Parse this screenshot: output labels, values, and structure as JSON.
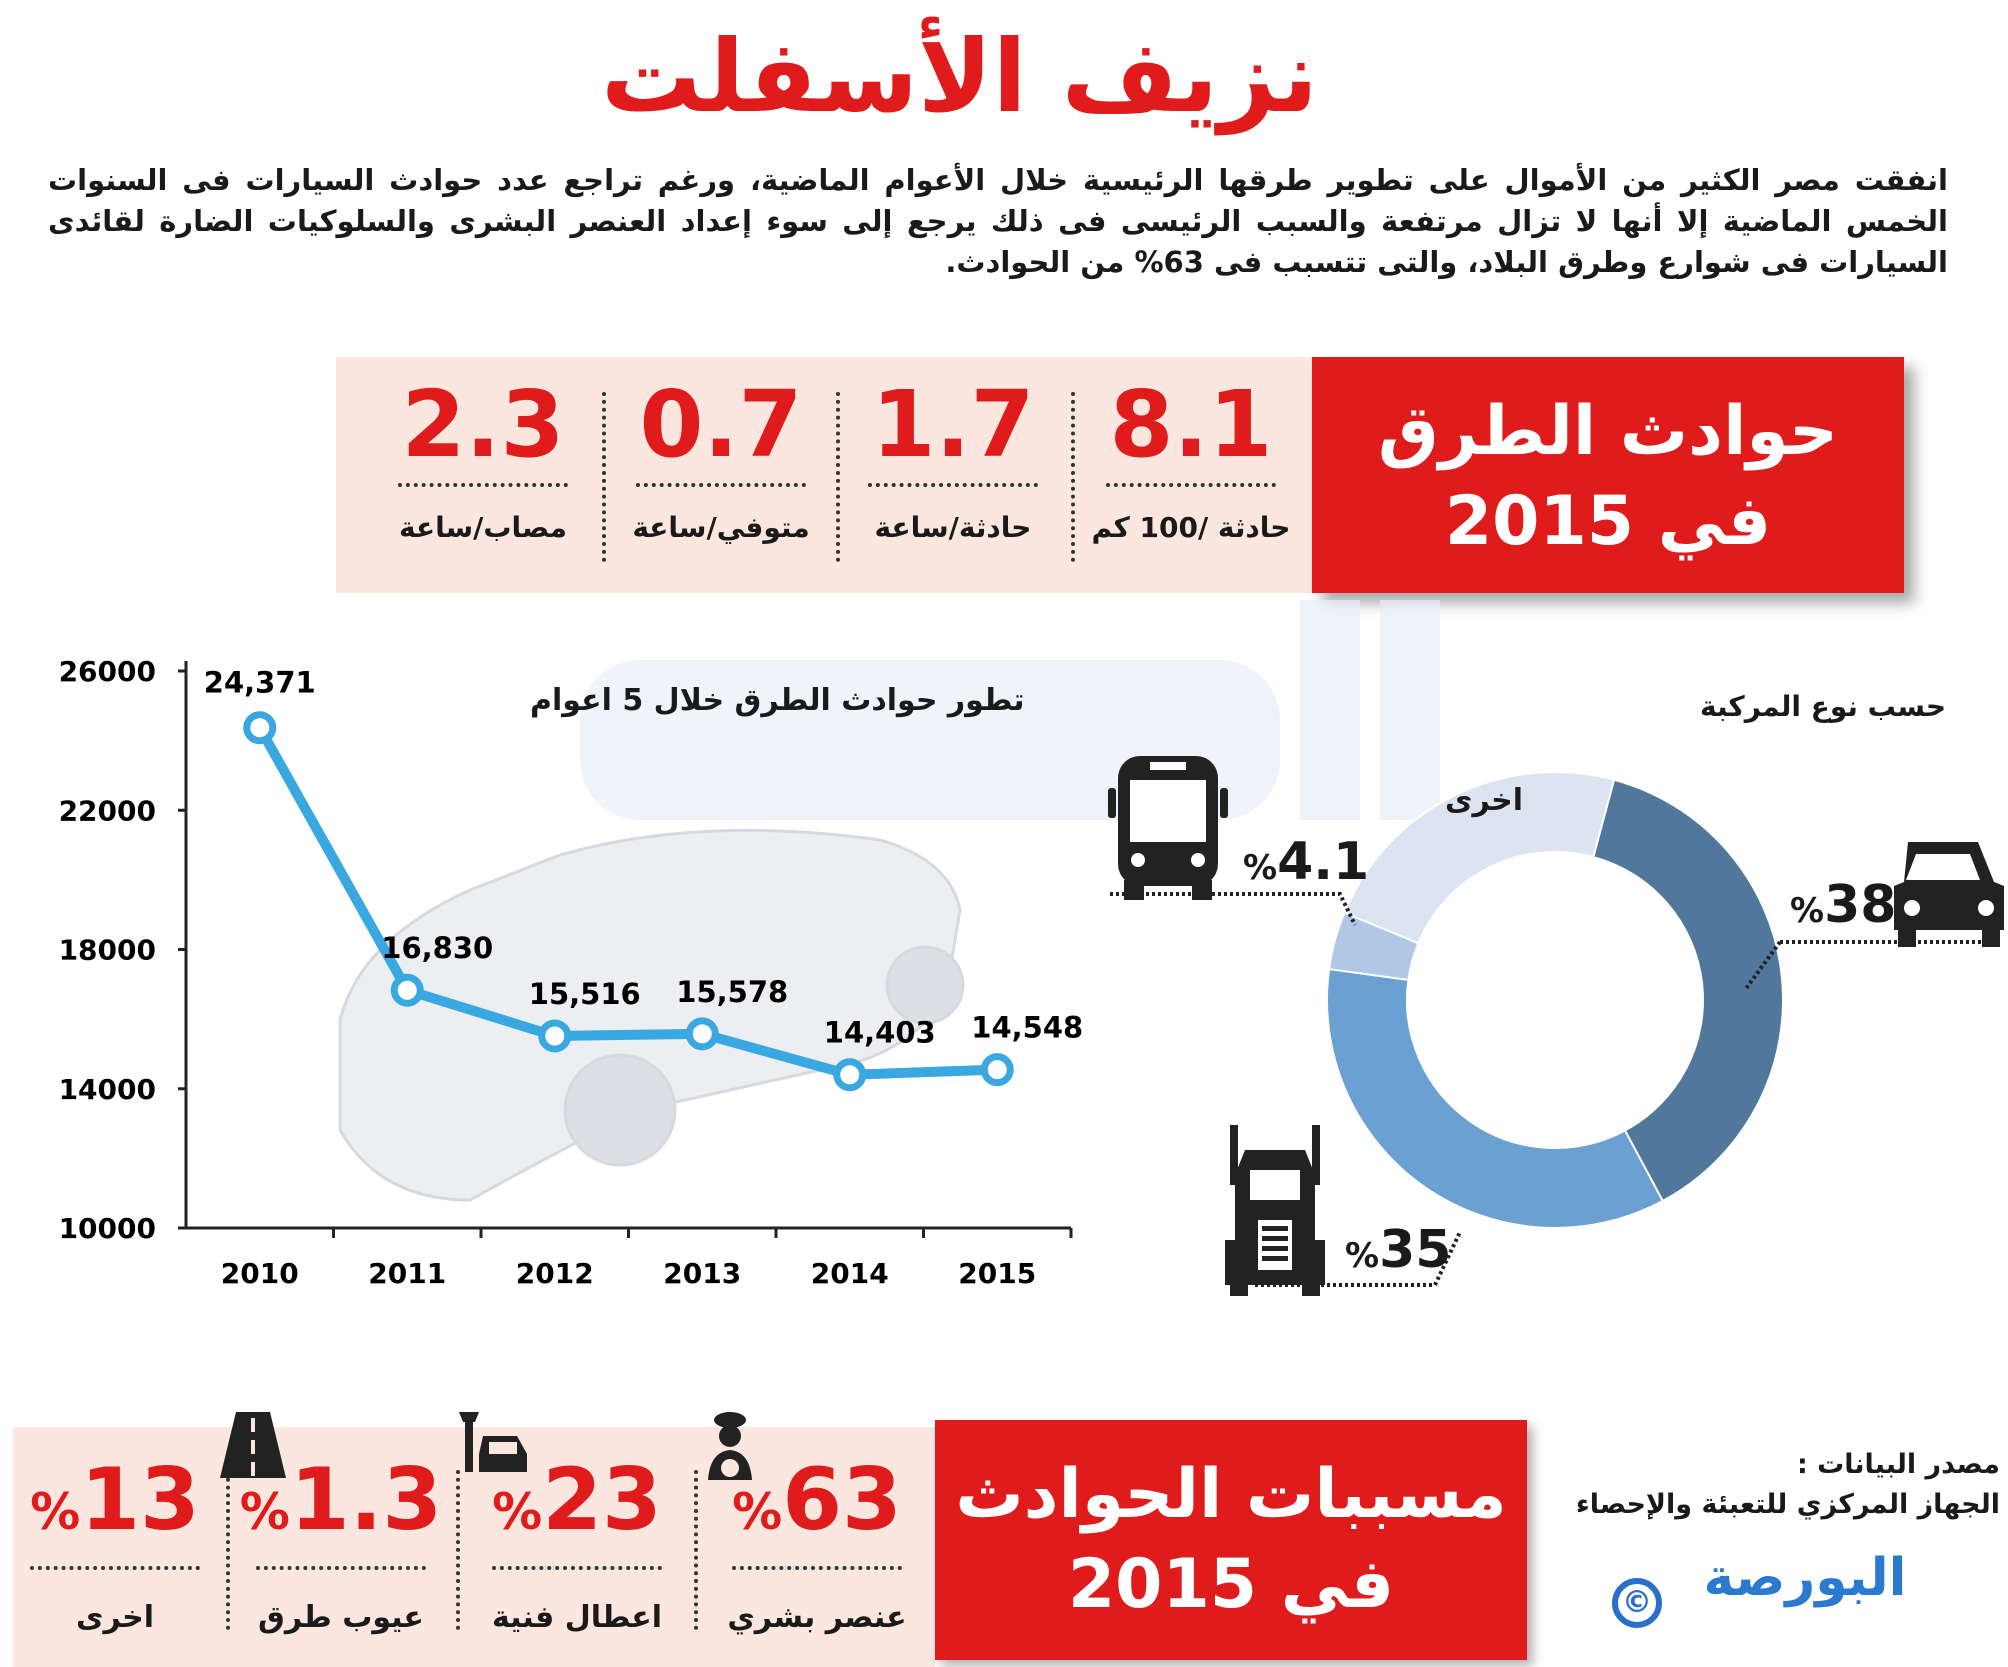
{
  "title": "نزيف الأسفلت",
  "intro": "انفقت مصر الكثير من الأموال على تطوير طرقها الرئيسية خلال الأعوام الماضية، ورغم تراجع عدد حوادث  السيارات فى السنوات الخمس الماضية إلا أنها لا تزال مرتفعة والسبب الرئيسى فى ذلك يرجع إلى سوء إعداد العنصر البشرى والسلوكيات الضارة لقائدى السيارات فى شوارع وطرق البلاد، والتى تتسبب فى 63%  من الحوادث.",
  "watermark": "البورصة",
  "accidents_box": {
    "line1": "حوادث الطرق",
    "line2": "في 2015"
  },
  "accident_stats": [
    {
      "value": "8.1",
      "label": "حادثة /100 كم"
    },
    {
      "value": "1.7",
      "label": "حادثة/ساعة"
    },
    {
      "value": "0.7",
      "label": "متوفي/ساعة"
    },
    {
      "value": "2.3",
      "label": "مصاب/ساعة"
    }
  ],
  "chart_data": [
    {
      "type": "line",
      "title": "تطور حوادث الطرق خلال 5 اعوام",
      "categories": [
        "2010",
        "2011",
        "2012",
        "2013",
        "2014",
        "2015"
      ],
      "values": [
        24371,
        16830,
        15516,
        15578,
        14403,
        14548
      ],
      "data_labels": [
        "24,371",
        "16,830",
        "15,516",
        "15,578",
        "14,403",
        "14,548"
      ],
      "ylim": [
        10000,
        26000
      ],
      "yticks": [
        "26000",
        "22000",
        "18000",
        "14000",
        "10000"
      ],
      "color": "#3aa8e0"
    },
    {
      "type": "pie",
      "title": "حسب نوع المركبة",
      "slices": [
        {
          "label": "سيارة",
          "value": 38,
          "text": "38",
          "color": "#52779c",
          "icon": "car-icon"
        },
        {
          "label": "نقل",
          "value": 35,
          "text": "35",
          "color": "#6aa0d2",
          "icon": "truck-icon"
        },
        {
          "label": "أتوبيس",
          "value": 4.1,
          "text": "4.1",
          "color": "#b0c7e6",
          "icon": "bus-icon"
        },
        {
          "label": "اخرى",
          "value": 22.9,
          "text": "اخرى",
          "color": "#dde4f1"
        }
      ],
      "percent_sign": "%"
    }
  ],
  "causes_box": {
    "line1": "مسببات الحوادث",
    "line2": "في 2015"
  },
  "causes": [
    {
      "value": "63",
      "label": "عنصر بشري",
      "icon": "driver-icon"
    },
    {
      "value": "23",
      "label": "اعطال فنية",
      "icon": "car-repair-icon"
    },
    {
      "value": "1.3",
      "label": "عيوب طرق",
      "icon": "road-icon"
    },
    {
      "value": "13",
      "label": "اخرى"
    }
  ],
  "source": {
    "label": "مصدر البيانات :",
    "value": "الجهاز المركزي للتعبئة والإحصاء"
  },
  "logo": "البورصة",
  "copyright": "©",
  "colors": {
    "accent": "#e01b1b",
    "band": "#fbe6e0"
  }
}
